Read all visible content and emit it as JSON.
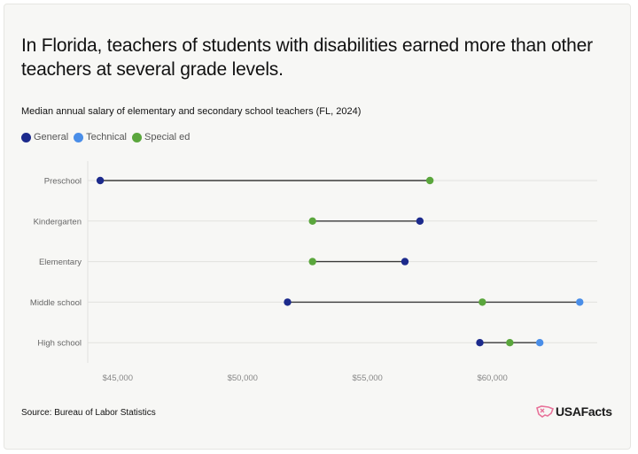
{
  "title": "In Florida, teachers of students with disabilities earned more than other teachers at several grade levels.",
  "subtitle": "Median annual salary of elementary and secondary school teachers (FL, 2024)",
  "source": "Source: Bureau of Labor Statistics",
  "brand": "USAFacts",
  "colors": {
    "General": "#1c2a8c",
    "Technical": "#4a8ee8",
    "Special ed": "#5aa63c",
    "connector": "#3a3a3a",
    "grid": "#e2e2de"
  },
  "chart_data": {
    "type": "dumbbell",
    "title": "Median annual salary of elementary and secondary school teachers (FL, 2024)",
    "categories": [
      "Preschool",
      "Kindergarten",
      "Elementary",
      "Middle school",
      "High school"
    ],
    "series": [
      {
        "name": "General",
        "values": [
          44300,
          57100,
          56500,
          51800,
          59500
        ]
      },
      {
        "name": "Technical",
        "values": [
          null,
          null,
          null,
          63500,
          61900
        ]
      },
      {
        "name": "Special ed",
        "values": [
          57500,
          52800,
          52800,
          59600,
          60700
        ]
      }
    ],
    "xlim": [
      43800,
      64200
    ],
    "xticks": [
      45000,
      50000,
      55000,
      60000
    ],
    "xtick_labels": [
      "$45,000",
      "$50,000",
      "$55,000",
      "$60,000"
    ],
    "legend": "top-left",
    "grid": true
  }
}
